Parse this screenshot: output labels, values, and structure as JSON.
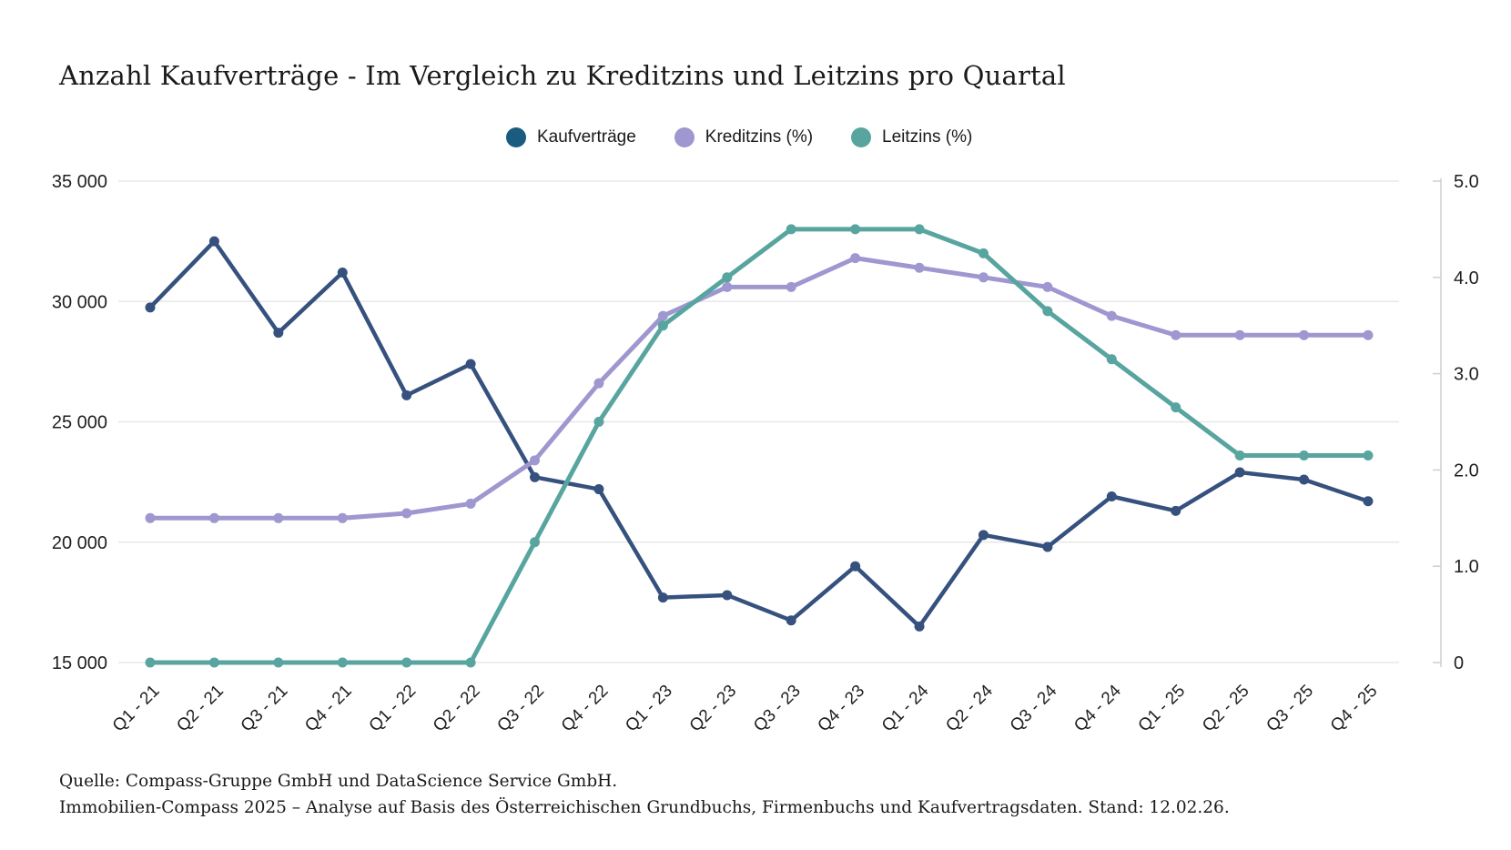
{
  "title": "Anzahl Kaufverträge - Im Vergleich zu Kreditzins und Leitzins pro Quartal",
  "legend": [
    {
      "label": "Kaufverträge",
      "color": "#1A5B80"
    },
    {
      "label": "Kreditzins (%)",
      "color": "#9E97D0"
    },
    {
      "label": "Leitzins (%)",
      "color": "#58A5A0"
    }
  ],
  "footer": {
    "line1": "Quelle: Compass-Gruppe GmbH und DataScience Service GmbH.",
    "line2": "Immobilien-Compass 2025 – Analyse auf Basis des Österreichischen Grundbuchs, Firmenbuchs und Kaufvertragsdaten. Stand: 12.02.26."
  },
  "chart_data": {
    "type": "line",
    "title": "Anzahl Kaufverträge - Im Vergleich zu Kreditzins und Leitzins pro Quartal",
    "grid": true,
    "legend_position": "top",
    "categories": [
      "Q1 - 21",
      "Q2 - 21",
      "Q3 - 21",
      "Q4 - 21",
      "Q1 - 22",
      "Q2 - 22",
      "Q3 - 22",
      "Q4 - 22",
      "Q1 - 23",
      "Q2 - 23",
      "Q3 - 23",
      "Q4 - 23",
      "Q1 - 24",
      "Q2 - 24",
      "Q3 - 24",
      "Q4 - 24",
      "Q1 - 25",
      "Q2 - 25",
      "Q3 - 25",
      "Q4 - 25"
    ],
    "left_axis": {
      "min": 15000,
      "max": 35000,
      "tick_values": [
        35000,
        30000,
        25000,
        20000,
        15000
      ],
      "ticks": [
        "35 000",
        "30 000",
        "25 000",
        "20 000",
        "15 000"
      ]
    },
    "right_axis": {
      "min": 0,
      "max": 5,
      "tick_values": [
        5,
        4,
        3,
        2,
        1,
        0
      ],
      "ticks": [
        "5.0",
        "4.0",
        "3.0",
        "2.0",
        "1.0",
        "0"
      ]
    },
    "series": [
      {
        "name": "Kaufverträge",
        "axis": "left",
        "color": "#36517E",
        "line_width": 4.5,
        "values": [
          29750,
          32500,
          28700,
          31200,
          26100,
          27400,
          22700,
          22200,
          17700,
          17800,
          16750,
          19000,
          16500,
          20300,
          19800,
          21900,
          21300,
          22900,
          22600,
          21700
        ]
      },
      {
        "name": "Kreditzins (%)",
        "axis": "right",
        "color": "#9E97D0",
        "line_width": 5,
        "values": [
          1.5,
          1.5,
          1.5,
          1.5,
          1.55,
          1.65,
          2.1,
          2.9,
          3.6,
          3.9,
          3.9,
          4.2,
          4.1,
          4.0,
          3.9,
          3.6,
          3.4,
          3.4,
          3.4,
          3.4
        ]
      },
      {
        "name": "Leitzins (%)",
        "axis": "right",
        "color": "#58A5A0",
        "line_width": 5,
        "values": [
          0,
          0,
          0,
          0,
          0,
          0,
          1.25,
          2.5,
          3.5,
          4.0,
          4.5,
          4.5,
          4.5,
          4.25,
          3.65,
          3.15,
          2.65,
          2.15,
          2.15,
          2.15
        ]
      }
    ]
  }
}
